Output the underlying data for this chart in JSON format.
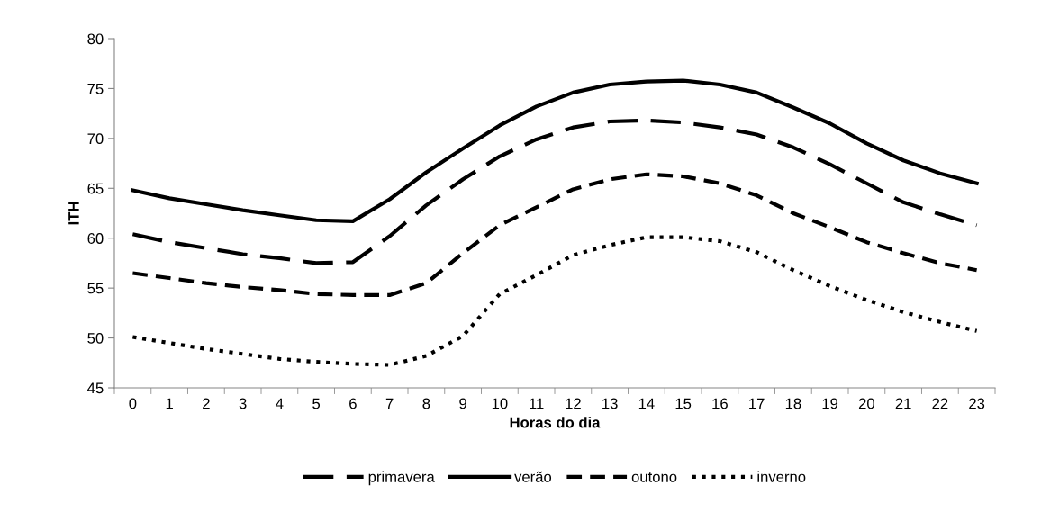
{
  "chart_data": {
    "type": "line",
    "xlabel": "Horas do dia",
    "ylabel": "ITH",
    "categories": [
      "0",
      "1",
      "2",
      "3",
      "4",
      "5",
      "6",
      "7",
      "8",
      "9",
      "10",
      "11",
      "12",
      "13",
      "14",
      "15",
      "16",
      "17",
      "18",
      "19",
      "20",
      "21",
      "22",
      "23"
    ],
    "series": [
      {
        "name": "primavera",
        "color": "#000000",
        "line_style": "longdash",
        "values": [
          60.4,
          59.6,
          59.0,
          58.4,
          58.0,
          57.5,
          57.6,
          60.2,
          63.3,
          65.9,
          68.2,
          69.9,
          71.1,
          71.7,
          71.8,
          71.6,
          71.1,
          70.4,
          69.1,
          67.4,
          65.5,
          63.6,
          62.4,
          61.3
        ]
      },
      {
        "name": "verão",
        "color": "#000000",
        "line_style": "solid",
        "values": [
          64.8,
          64.0,
          63.4,
          62.8,
          62.3,
          61.8,
          61.7,
          63.9,
          66.6,
          69.0,
          71.3,
          73.2,
          74.6,
          75.4,
          75.7,
          75.8,
          75.4,
          74.6,
          73.1,
          71.5,
          69.5,
          67.8,
          66.5,
          65.5
        ]
      },
      {
        "name": "outono",
        "color": "#000000",
        "line_style": "dashed",
        "values": [
          56.5,
          56.0,
          55.5,
          55.1,
          54.8,
          54.4,
          54.3,
          54.3,
          55.5,
          58.5,
          61.3,
          63.1,
          64.9,
          65.9,
          66.4,
          66.2,
          65.5,
          64.3,
          62.5,
          61.1,
          59.6,
          58.5,
          57.5,
          56.8
        ]
      },
      {
        "name": "inverno",
        "color": "#000000",
        "line_style": "dotted",
        "values": [
          50.1,
          49.5,
          48.9,
          48.4,
          47.9,
          47.6,
          47.4,
          47.3,
          48.2,
          50.2,
          54.4,
          56.3,
          58.3,
          59.3,
          60.1,
          60.1,
          59.7,
          58.6,
          56.8,
          55.2,
          53.8,
          52.6,
          51.6,
          50.7
        ]
      }
    ],
    "ylim": [
      45,
      80
    ],
    "yticks": [
      45,
      50,
      55,
      60,
      65,
      70,
      75,
      80
    ],
    "grid": false,
    "legend": "bottom",
    "marker": "none"
  }
}
